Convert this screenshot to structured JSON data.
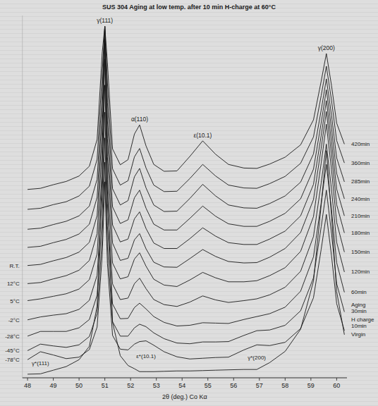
{
  "chart_data": {
    "type": "line",
    "title": "SUS 304 Aging at low temp. after 10 min H-charge at 60°C",
    "x_label": "2θ (deg.) Co Kα",
    "color": "#1a1a1a",
    "tick_labels": "x",
    "xlim": [
      47.8,
      60.4
    ],
    "xticks": [
      48,
      49,
      50,
      51,
      52,
      53,
      54,
      55,
      56,
      57,
      58,
      59,
      60
    ],
    "ylim": [
      0,
      100
    ],
    "x": [
      48,
      48.5,
      49,
      49.5,
      50,
      50.4,
      50.7,
      50.9,
      51.0,
      51.1,
      51.3,
      51.6,
      51.9,
      52.15,
      52.35,
      52.6,
      52.9,
      53.3,
      53.8,
      54.3,
      54.8,
      55.3,
      55.8,
      56.4,
      56.9,
      57.4,
      58.0,
      58.6,
      59.1,
      59.4,
      59.6,
      59.8,
      60.0,
      60.3
    ],
    "series": [
      {
        "name": "Virgin",
        "values": [
          1.0,
          1.1,
          2.1,
          3.1,
          5.0,
          8.7,
          19.8,
          56.6,
          93.5,
          52.1,
          15.3,
          6.1,
          3.4,
          2.5,
          1.7,
          1.7,
          1.7,
          1.8,
          1.9,
          1.9,
          2.0,
          2.1,
          2.2,
          2.3,
          2.3,
          4.2,
          7.3,
          13.4,
          26.7,
          47.7,
          62.7,
          44.8,
          23.8,
          11.9
        ]
      },
      {
        "name": "H charge 10min",
        "temperature": "-78°C",
        "values": [
          5.0,
          7.2,
          6.3,
          5.3,
          5.7,
          7.8,
          14.0,
          34.0,
          54.1,
          31.6,
          11.7,
          7.9,
          7.7,
          9.3,
          10.0,
          10.2,
          9.0,
          7.2,
          5.8,
          5.2,
          5.4,
          5.6,
          5.7,
          7.7,
          9.1,
          8.9,
          9.8,
          13.6,
          22.1,
          35.5,
          45.1,
          33.7,
          20.5,
          13.0
        ]
      },
      {
        "name": "Aging 30min",
        "temperature": "-45°C",
        "values": [
          7.5,
          9.3,
          8.8,
          8.4,
          9.1,
          11.4,
          17.8,
          38.7,
          59.5,
          36.2,
          15.5,
          11.5,
          11.5,
          13.8,
          14.8,
          14.1,
          12.4,
          10.8,
          9.6,
          9.4,
          9.9,
          9.9,
          10.0,
          11.7,
          13.0,
          13.2,
          14.5,
          18.5,
          27.6,
          41.7,
          51.8,
          39.9,
          26.0,
          18.2
        ]
      },
      {
        "name": "60min",
        "temperature": "-28°C",
        "values": [
          11.5,
          12.8,
          12.8,
          12.8,
          13.8,
          16.1,
          22.8,
          44.5,
          66.2,
          41.9,
          20.4,
          16.3,
          16.4,
          19.4,
          20.6,
          19.0,
          16.9,
          15.3,
          14.3,
          14.5,
          15.2,
          15.1,
          15.0,
          16.1,
          16.9,
          17.7,
          19.5,
          23.9,
          33.4,
          48.3,
          58.9,
          46.4,
          31.8,
          23.6
        ]
      },
      {
        "name": "120min",
        "temperature": "-2°C",
        "values": [
          16.0,
          16.8,
          17.3,
          17.7,
          18.9,
          21.4,
          28.3,
          50.8,
          73.3,
          48.2,
          25.9,
          21.6,
          22.0,
          26.0,
          27.5,
          24.6,
          21.6,
          20.2,
          19.7,
          20.9,
          22.6,
          21.5,
          20.8,
          21.3,
          21.8,
          22.9,
          25.0,
          29.4,
          39.0,
          53.8,
          64.5,
          52.0,
          37.4,
          29.2
        ]
      },
      {
        "name": "150min",
        "temperature": "5°C",
        "values": [
          21.3,
          21.8,
          22.5,
          23.2,
          24.5,
          27.1,
          34.2,
          57.5,
          80.8,
          54.8,
          31.7,
          27.3,
          27.9,
          32.8,
          34.5,
          30.8,
          27.2,
          25.6,
          25.2,
          27.0,
          29.1,
          27.6,
          26.5,
          26.5,
          26.8,
          28.2,
          30.4,
          34.9,
          44.5,
          59.3,
          70.0,
          57.5,
          42.9,
          34.7
        ]
      },
      {
        "name": "180min",
        "temperature": "12°C",
        "values": [
          26.0,
          26.3,
          27.3,
          28.2,
          29.7,
          32.4,
          39.8,
          63.9,
          88.0,
          61.0,
          37.2,
          32.4,
          33.0,
          38.1,
          39.8,
          35.6,
          31.9,
          30.6,
          30.5,
          32.9,
          35.4,
          33.5,
          32.1,
          31.7,
          31.8,
          33.3,
          35.7,
          40.1,
          49.2,
          63.4,
          73.5,
          61.7,
          47.8,
          40.0
        ]
      },
      {
        "name": "210min",
        "temperature": "R.T.",
        "values": [
          31.0,
          31.3,
          32.3,
          33.2,
          34.7,
          37.4,
          44.8,
          68.9,
          93.0,
          66.0,
          42.2,
          37.5,
          38.3,
          43.9,
          45.8,
          41.2,
          37.2,
          35.7,
          35.7,
          38.4,
          41.4,
          39.1,
          37.3,
          36.8,
          36.8,
          38.3,
          40.5,
          44.7,
          53.4,
          66.9,
          76.5,
          65.3,
          52.1,
          44.7
        ]
      },
      {
        "name": "240min",
        "values": [
          36.0,
          36.3,
          37.3,
          38.2,
          39.7,
          42.4,
          49.8,
          73.9,
          97.0,
          71.0,
          47.2,
          42.6,
          43.6,
          49.7,
          51.8,
          46.8,
          42.4,
          40.8,
          40.8,
          44.0,
          47.4,
          44.6,
          42.5,
          41.8,
          41.8,
          43.2,
          45.4,
          49.4,
          57.6,
          70.4,
          79.5,
          68.9,
          56.4,
          49.4
        ]
      },
      {
        "name": "285min",
        "values": [
          41.0,
          41.3,
          42.3,
          43.2,
          44.7,
          47.4,
          54.8,
          78.9,
          97.0,
          76.0,
          52.2,
          47.7,
          48.9,
          55.5,
          57.8,
          52.4,
          47.7,
          45.9,
          46.0,
          49.5,
          53.4,
          50.2,
          47.7,
          46.9,
          46.8,
          48.1,
          50.2,
          54.0,
          61.8,
          73.9,
          82.5,
          72.5,
          60.7,
          54.1
        ]
      },
      {
        "name": "360min",
        "values": [
          46.5,
          46.8,
          47.8,
          48.6,
          50.2,
          52.9,
          60.3,
          84.4,
          97.0,
          81.5,
          57.7,
          53.2,
          54.4,
          61.0,
          63.3,
          57.9,
          53.2,
          51.4,
          51.5,
          55.0,
          58.9,
          55.7,
          53.2,
          52.4,
          52.3,
          53.6,
          55.6,
          59.2,
          66.5,
          77.9,
          86.0,
          76.6,
          65.5,
          59.3
        ]
      },
      {
        "name": "420min",
        "values": [
          52.0,
          52.3,
          53.3,
          54.2,
          55.7,
          58.4,
          65.8,
          89.9,
          97.0,
          87.0,
          63.2,
          58.8,
          60.2,
          67.3,
          69.8,
          64.0,
          58.9,
          57.0,
          57.1,
          61.1,
          65.4,
          61.7,
          58.9,
          57.9,
          57.8,
          59.0,
          60.9,
          64.3,
          71.2,
          81.9,
          89.5,
          80.7,
          70.3,
          64.5
        ]
      }
    ],
    "peak_labels": [
      {
        "label": "γ(111)",
        "x": 51.0
      },
      {
        "label": "α(110)",
        "x": 52.35
      },
      {
        "label": "ε(10.1)",
        "x": 54.8
      },
      {
        "label": "γ(200)",
        "x": 59.6
      }
    ],
    "hydride_peak_labels": [
      {
        "label": "γ*(111)",
        "x": 48.5
      },
      {
        "label": "ε*(10.1)",
        "x": 52.6
      },
      {
        "label": "γ*(200)",
        "x": 56.9
      }
    ]
  }
}
